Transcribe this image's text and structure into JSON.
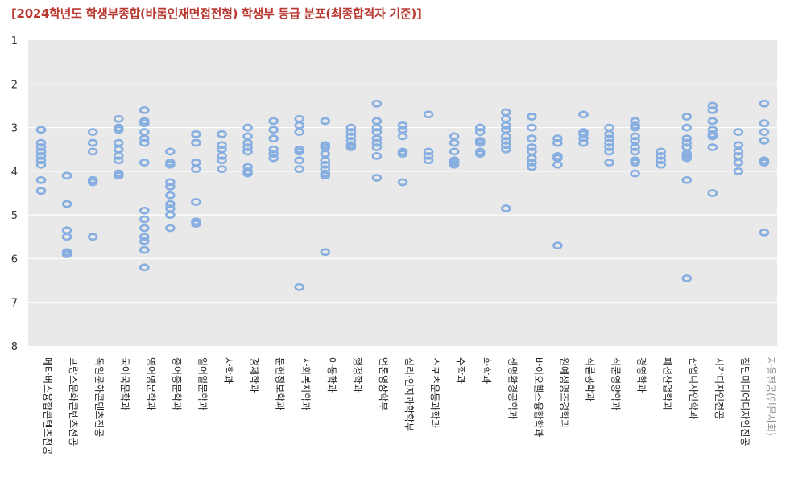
{
  "title": "[2024학년도 학생부종합(바롬인재면접전형) 학생부 등급 분포(최종합격자 기준)]",
  "colors": {
    "title": "#b8382f",
    "plot_bg": "#e9e9e9",
    "grid": "#ffffff",
    "marker": "#86aee0",
    "muted_label": "#8a8a8a"
  },
  "chart_data": {
    "type": "scatter",
    "title": "[2024학년도 학생부종합(바롬인재면접전형) 학생부 등급 분포(최종합격자 기준)]",
    "xlabel": "",
    "ylabel": "",
    "ylim": [
      1,
      8
    ],
    "y_inverted": true,
    "yticks": [
      "1",
      "2",
      "3",
      "4",
      "5",
      "6",
      "7",
      "8"
    ],
    "grid": "horizontal",
    "legend": "none",
    "categories": [
      "메타버스융합콘텐츠전공",
      "프랑스문화콘텐츠전공",
      "독일문화콘텐츠전공",
      "국어국문학과",
      "영어영문학과",
      "중어중문학과",
      "일어일문학과",
      "사학과",
      "경제학과",
      "문헌정보학과",
      "사회복지학과",
      "아동학과",
      "행정학과",
      "언론영상학부",
      "심리·인지과학학부",
      "스포츠운동과학과",
      "수학과",
      "화학과",
      "생명환경공학과",
      "바이오헬스융합학과",
      "원예생명조경학과",
      "식품공학과",
      "식품영양학과",
      "경영학과",
      "패션산업학과",
      "산업디자인학과",
      "시각디자인전공",
      "첨단미디어디자인전공",
      "자율전공(인문사회)"
    ],
    "muted_categories": [
      "자율전공(인문사회)"
    ],
    "points": [
      [
        3.05,
        3.35,
        3.45,
        3.55,
        3.65,
        3.75,
        3.85,
        4.2,
        4.45
      ],
      [
        4.1,
        4.75,
        5.35,
        5.5,
        5.85,
        5.9
      ],
      [
        3.1,
        3.35,
        3.55,
        4.2,
        4.25,
        5.5
      ],
      [
        2.8,
        3.0,
        3.05,
        3.35,
        3.5,
        3.65,
        3.75,
        4.05,
        4.1
      ],
      [
        2.6,
        2.85,
        2.9,
        3.1,
        3.25,
        3.35,
        3.8,
        4.9,
        5.1,
        5.3,
        5.5,
        5.6,
        5.8,
        6.2
      ],
      [
        3.55,
        3.8,
        3.85,
        4.25,
        4.35,
        4.55,
        4.75,
        4.85,
        5.0,
        5.3
      ],
      [
        3.15,
        3.35,
        3.8,
        3.95,
        4.7,
        5.15,
        5.2
      ],
      [
        3.15,
        3.4,
        3.5,
        3.65,
        3.75,
        3.95
      ],
      [
        3.0,
        3.2,
        3.35,
        3.45,
        3.55,
        3.9,
        4.0,
        4.05
      ],
      [
        2.85,
        3.05,
        3.25,
        3.5,
        3.6,
        3.7
      ],
      [
        2.8,
        2.95,
        3.1,
        3.5,
        3.55,
        3.75,
        3.95,
        6.65
      ],
      [
        2.85,
        3.4,
        3.45,
        3.6,
        3.75,
        3.85,
        3.95,
        4.05,
        4.1,
        5.85
      ],
      [
        3.0,
        3.1,
        3.2,
        3.3,
        3.4,
        3.45
      ],
      [
        2.45,
        2.85,
        3.0,
        3.1,
        3.25,
        3.35,
        3.45,
        3.65,
        4.15
      ],
      [
        2.95,
        3.05,
        3.2,
        3.55,
        3.6,
        4.25
      ],
      [
        2.7,
        3.55,
        3.65,
        3.75
      ],
      [
        3.2,
        3.35,
        3.55,
        3.75,
        3.8,
        3.85
      ],
      [
        3.0,
        3.1,
        3.3,
        3.35,
        3.55,
        3.6
      ],
      [
        2.65,
        2.8,
        2.95,
        3.05,
        3.2,
        3.3,
        3.4,
        3.5,
        4.85
      ],
      [
        2.75,
        3.0,
        3.25,
        3.45,
        3.55,
        3.7,
        3.8,
        3.9
      ],
      [
        3.25,
        3.35,
        3.65,
        3.7,
        3.85,
        5.7
      ],
      [
        2.7,
        3.1,
        3.15,
        3.25,
        3.35
      ],
      [
        3.0,
        3.15,
        3.25,
        3.35,
        3.45,
        3.55,
        3.8
      ],
      [
        2.85,
        2.95,
        3.0,
        3.2,
        3.3,
        3.45,
        3.55,
        3.75,
        3.8,
        4.05
      ],
      [
        3.55,
        3.65,
        3.75,
        3.85
      ],
      [
        2.75,
        3.0,
        3.25,
        3.35,
        3.45,
        3.6,
        3.65,
        3.7,
        4.2,
        6.45
      ],
      [
        2.5,
        2.6,
        2.85,
        3.05,
        3.15,
        3.2,
        3.45,
        4.5
      ],
      [
        3.1,
        3.4,
        3.55,
        3.65,
        3.8,
        4.0
      ],
      [
        2.45,
        2.9,
        3.1,
        3.3,
        3.75,
        3.8,
        5.4
      ]
    ]
  }
}
